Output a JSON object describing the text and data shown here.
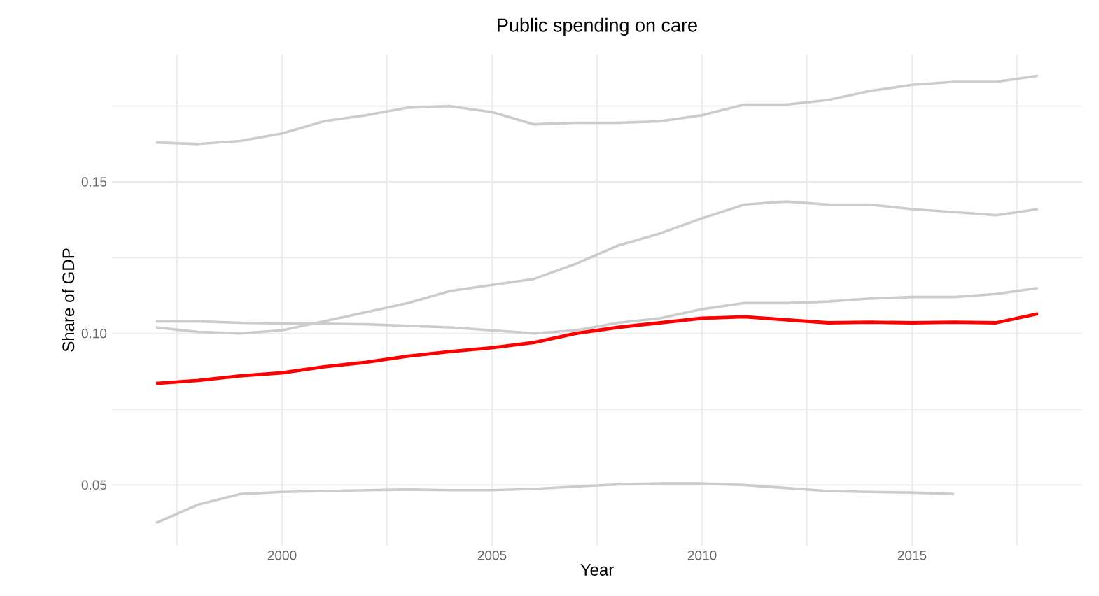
{
  "chart_data": {
    "type": "line",
    "title": "Public spending on care",
    "xlabel": "Year",
    "ylabel": "Share of GDP",
    "x": [
      1997,
      1998,
      1999,
      2000,
      2001,
      2002,
      2003,
      2004,
      2005,
      2006,
      2007,
      2008,
      2009,
      2010,
      2011,
      2012,
      2013,
      2014,
      2015,
      2016,
      2017,
      2018
    ],
    "series": [
      {
        "color": "#cccccc",
        "values": [
          0.163,
          0.1625,
          0.1635,
          0.166,
          0.17,
          0.172,
          0.1745,
          0.175,
          0.173,
          0.169,
          0.1695,
          0.1695,
          0.17,
          0.172,
          0.1755,
          0.1755,
          0.177,
          0.18,
          0.182,
          0.183,
          0.183,
          0.185
        ]
      },
      {
        "color": "#cccccc",
        "values": [
          0.102,
          0.1005,
          0.1,
          0.101,
          0.104,
          0.107,
          0.11,
          0.114,
          0.116,
          0.118,
          0.123,
          0.129,
          0.133,
          0.138,
          0.1425,
          0.1435,
          0.1425,
          0.1425,
          0.141,
          0.14,
          0.139,
          0.141
        ]
      },
      {
        "color": "#cccccc",
        "values": [
          0.104,
          0.104,
          0.1035,
          0.1033,
          0.1032,
          0.103,
          0.1025,
          0.102,
          0.101,
          0.1,
          0.101,
          0.1035,
          0.105,
          0.108,
          0.11,
          0.11,
          0.1105,
          0.1115,
          0.112,
          0.112,
          0.113,
          0.115
        ]
      },
      {
        "color": "#cccccc",
        "values": [
          0.0375,
          0.0435,
          0.047,
          0.0477,
          0.048,
          0.0483,
          0.0485,
          0.0483,
          0.0483,
          0.0487,
          0.0495,
          0.0502,
          0.0505,
          0.0505,
          0.05,
          0.049,
          0.048,
          0.0477,
          0.0475,
          0.047,
          null,
          null
        ]
      },
      {
        "color": "#ff0000",
        "values": [
          0.0835,
          0.0845,
          0.086,
          0.087,
          0.089,
          0.0905,
          0.0925,
          0.094,
          0.0953,
          0.097,
          0.1,
          0.102,
          0.1035,
          0.105,
          0.1055,
          0.1045,
          0.1035,
          0.1037,
          0.1035,
          0.1037,
          0.1035,
          0.1065
        ]
      }
    ],
    "xlim": [
      1995.95,
      2019.05
    ],
    "xticks": [
      {
        "value": 1997.5,
        "label": null
      },
      2000,
      {
        "value": 2002.5,
        "label": null
      },
      2005,
      {
        "value": 2007.5,
        "label": null
      },
      2010,
      {
        "value": 2012.5,
        "label": null
      },
      2015,
      {
        "value": 2017.5,
        "label": null
      }
    ],
    "ylim": [
      0.03,
      0.192
    ],
    "yticks": [
      0.05,
      {
        "value": 0.075,
        "label": null
      },
      {
        "value": 0.1,
        "label": "0.10"
      },
      {
        "value": 0.125,
        "label": null
      },
      0.15,
      {
        "value": 0.175,
        "label": null
      }
    ],
    "grid": true,
    "marker": "none",
    "line_style": "solid"
  }
}
